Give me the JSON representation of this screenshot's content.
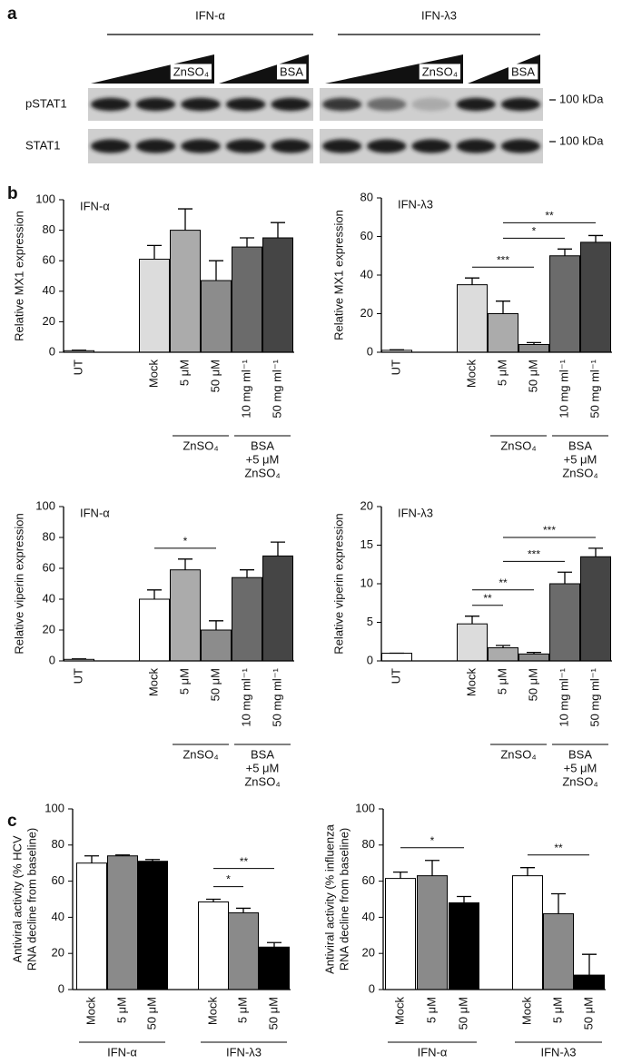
{
  "panel_labels": [
    "a",
    "b",
    "c"
  ],
  "blot": {
    "groups": [
      {
        "label": "IFN-α",
        "wedges": [
          "ZnSO₄",
          "BSA"
        ]
      },
      {
        "label": "IFN-λ3",
        "wedges": [
          "ZnSO₄",
          "BSA"
        ]
      }
    ],
    "rows": [
      "pSTAT1",
      "STAT1"
    ],
    "markers": [
      "100 kDa",
      "100 kDa"
    ]
  },
  "chart_data": [
    {
      "type": "bar",
      "title": "IFN-α",
      "ylabel": [
        "Relative MX1 expression"
      ],
      "categories": [
        "UT",
        "Mock",
        "5 μM",
        "50 μM",
        "10 mg ml⁻¹",
        "50 mg ml⁻¹"
      ],
      "values": [
        1,
        61,
        80,
        47,
        69,
        75
      ],
      "errors": [
        0.3,
        9,
        14,
        13,
        6,
        10
      ],
      "colors": [
        "#ffffff",
        "#dcdcdc",
        "#ababab",
        "#8c8c8c",
        "#6b6b6b",
        "#454545"
      ],
      "ylim": [
        0,
        100
      ],
      "yticks": [
        0,
        20,
        40,
        60,
        80,
        100
      ],
      "groups": [
        {
          "label": [
            "ZnSO₄"
          ],
          "span": [
            2,
            3
          ]
        },
        {
          "label": [
            "BSA",
            "+5 μM",
            "ZnSO₄"
          ],
          "span": [
            4,
            5
          ]
        }
      ],
      "significance": []
    },
    {
      "type": "bar",
      "title": "IFN-λ3",
      "ylabel": [
        "Relative MX1 expression"
      ],
      "categories": [
        "UT",
        "Mock",
        "5 μM",
        "50 μM",
        "10 mg ml⁻¹",
        "50 mg ml⁻¹"
      ],
      "values": [
        1,
        35,
        20,
        4,
        50,
        57
      ],
      "errors": [
        0.3,
        3.5,
        6.5,
        1,
        3.5,
        3.5
      ],
      "colors": [
        "#ffffff",
        "#dcdcdc",
        "#ababab",
        "#8c8c8c",
        "#6b6b6b",
        "#454545"
      ],
      "ylim": [
        0,
        80
      ],
      "yticks": [
        0,
        20,
        40,
        60,
        80
      ],
      "groups": [
        {
          "label": [
            "ZnSO₄"
          ],
          "span": [
            2,
            3
          ]
        },
        {
          "label": [
            "BSA",
            "+5 μM",
            "ZnSO₄"
          ],
          "span": [
            4,
            5
          ]
        }
      ],
      "significance": [
        {
          "span": [
            1,
            3
          ],
          "label": "***"
        },
        {
          "span": [
            2,
            4
          ],
          "label": "*"
        },
        {
          "span": [
            2,
            5
          ],
          "label": "**"
        }
      ]
    },
    {
      "type": "bar",
      "title": "IFN-α",
      "ylabel": [
        "Relative viperin expression"
      ],
      "categories": [
        "UT",
        "Mock",
        "5 μM",
        "50 μM",
        "10 mg ml⁻¹",
        "50 mg ml⁻¹"
      ],
      "values": [
        1,
        40,
        59,
        20,
        54,
        68
      ],
      "errors": [
        0.3,
        6,
        7,
        6,
        5,
        9
      ],
      "colors": [
        "#ffffff",
        "#ffffff",
        "#ababab",
        "#8c8c8c",
        "#6b6b6b",
        "#454545"
      ],
      "ylim": [
        0,
        100
      ],
      "yticks": [
        0,
        20,
        40,
        60,
        80,
        100
      ],
      "groups": [
        {
          "label": [
            "ZnSO₄"
          ],
          "span": [
            2,
            3
          ]
        },
        {
          "label": [
            "BSA",
            "+5 μM",
            "ZnSO₄"
          ],
          "span": [
            4,
            5
          ]
        }
      ],
      "significance": [
        {
          "span": [
            1,
            3
          ],
          "label": "*"
        }
      ]
    },
    {
      "type": "bar",
      "title": "IFN-λ3",
      "ylabel": [
        "Relative viperin expression"
      ],
      "categories": [
        "UT",
        "Mock",
        "5 μM",
        "50 μM",
        "10 mg ml⁻¹",
        "50 mg ml⁻¹"
      ],
      "values": [
        1,
        4.8,
        1.7,
        0.9,
        10,
        13.5
      ],
      "errors": [
        0,
        1,
        0.3,
        0.2,
        1.5,
        1.1
      ],
      "colors": [
        "#ffffff",
        "#dcdcdc",
        "#ababab",
        "#8c8c8c",
        "#6b6b6b",
        "#454545"
      ],
      "ylim": [
        0,
        20
      ],
      "yticks": [
        0,
        5,
        10,
        15,
        20
      ],
      "groups": [
        {
          "label": [
            "ZnSO₄"
          ],
          "span": [
            2,
            3
          ]
        },
        {
          "label": [
            "BSA",
            "+5 μM",
            "ZnSO₄"
          ],
          "span": [
            4,
            5
          ]
        }
      ],
      "significance": [
        {
          "span": [
            1,
            2
          ],
          "label": "**"
        },
        {
          "span": [
            1,
            3
          ],
          "label": "**"
        },
        {
          "span": [
            2,
            4
          ],
          "label": "***"
        },
        {
          "span": [
            2,
            5
          ],
          "label": "***"
        }
      ]
    },
    {
      "type": "bar",
      "title": null,
      "ylabel": [
        "Antiviral activity (% HCV",
        "RNA decline from baseline)"
      ],
      "categories": [
        "Mock",
        "5 μM",
        "50 μM",
        "Mock",
        "5 μM",
        "50 μM"
      ],
      "values": [
        70,
        74,
        71,
        48.5,
        42.5,
        23.5
      ],
      "errors": [
        4,
        0.5,
        1,
        1.5,
        2.5,
        2.5
      ],
      "colors": [
        "#ffffff",
        "#8a8a8a",
        "#000000",
        "#ffffff",
        "#8a8a8a",
        "#000000"
      ],
      "ylim": [
        0,
        100
      ],
      "yticks": [
        0,
        20,
        40,
        60,
        80,
        100
      ],
      "groups": [
        {
          "label": [
            "IFN-α"
          ],
          "span": [
            0,
            2
          ]
        },
        {
          "label": [
            "IFN-λ3"
          ],
          "span": [
            3,
            5
          ]
        }
      ],
      "significance": [
        {
          "span": [
            3,
            4
          ],
          "label": "*"
        },
        {
          "span": [
            3,
            5
          ],
          "label": "**"
        }
      ]
    },
    {
      "type": "bar",
      "title": null,
      "ylabel": [
        "Antiviral activity (% influenza",
        "RNA decline from baseline)"
      ],
      "categories": [
        "Mock",
        "5 μM",
        "50 μM",
        "Mock",
        "5 μM",
        "50 μM"
      ],
      "values": [
        61.5,
        63,
        48,
        63,
        42,
        8
      ],
      "errors": [
        3.5,
        8.5,
        3.5,
        4.5,
        11,
        11.5
      ],
      "colors": [
        "#ffffff",
        "#8a8a8a",
        "#000000",
        "#ffffff",
        "#8a8a8a",
        "#000000"
      ],
      "ylim": [
        0,
        100
      ],
      "yticks": [
        0,
        20,
        40,
        60,
        80,
        100
      ],
      "groups": [
        {
          "label": [
            "IFN-α"
          ],
          "span": [
            0,
            2
          ]
        },
        {
          "label": [
            "IFN-λ3"
          ],
          "span": [
            3,
            5
          ]
        }
      ],
      "significance": [
        {
          "span": [
            0,
            2
          ],
          "label": "*"
        },
        {
          "span": [
            3,
            5
          ],
          "label": "**"
        }
      ]
    }
  ]
}
